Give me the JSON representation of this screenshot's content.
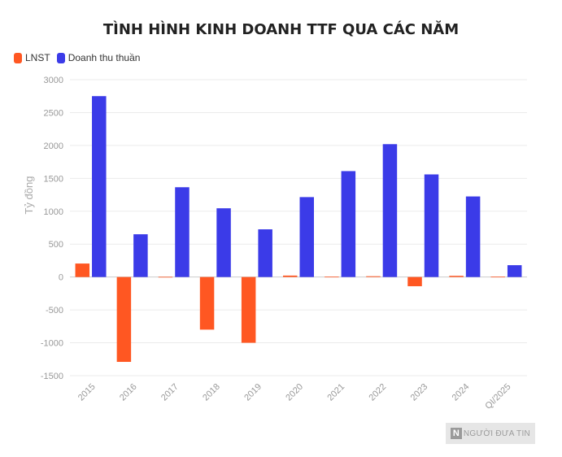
{
  "chart_data": {
    "type": "bar",
    "title": "TÌNH HÌNH KINH DOANH TTF QUA CÁC NĂM",
    "ylabel": "Tỷ đồng",
    "xlabel": "",
    "categories": [
      "2015",
      "2016",
      "2017",
      "2018",
      "2019",
      "2020",
      "2021",
      "2022",
      "2023",
      "2024",
      "QI/2025"
    ],
    "series": [
      {
        "name": "LNST",
        "color": "#ff5722",
        "values": [
          205,
          -1290,
          3,
          -800,
          -1000,
          22,
          5,
          12,
          -140,
          18,
          5
        ]
      },
      {
        "name": "Doanh thu thuần",
        "color": "#3b3be8",
        "values": [
          2750,
          650,
          1365,
          1045,
          725,
          1215,
          1610,
          2020,
          1560,
          1225,
          180
        ]
      }
    ],
    "ylim": [
      -1500,
      3000
    ],
    "yticks": [
      3000,
      2500,
      2000,
      1500,
      1000,
      500,
      0,
      -500,
      -1000,
      -1500
    ],
    "grid": true,
    "legend_position": "top-left"
  },
  "watermark": {
    "logo": "N",
    "text": "NGƯỜI ĐƯA TIN"
  }
}
